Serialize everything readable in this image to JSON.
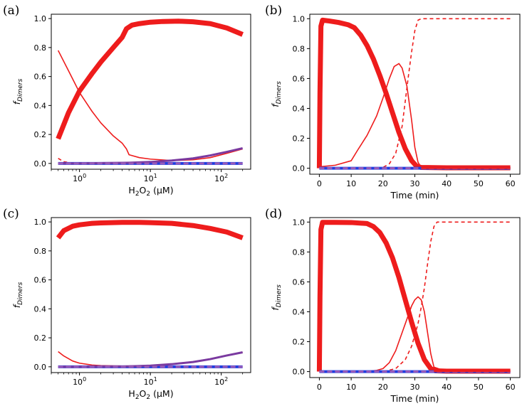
{
  "colors": {
    "red": "#ee1c1c",
    "blue": "#1f3fe0",
    "purple": "#7a3aa0",
    "axis": "#000000"
  },
  "chart_data": [
    {
      "panel": "(a)",
      "type": "line",
      "xscale": "log",
      "xlim": [
        0.4,
        260
      ],
      "ylim": [
        -0.04,
        1.03
      ],
      "xticks": [
        1,
        10,
        100
      ],
      "xtick_labels": [
        "10",
        "10",
        "10"
      ],
      "xtick_exponents": [
        "0",
        "1",
        "2"
      ],
      "yticks": [
        0.0,
        0.2,
        0.4,
        0.6,
        0.8,
        1.0
      ],
      "ytick_labels": [
        "0.0",
        "0.2",
        "0.4",
        "0.6",
        "0.8",
        "1.0"
      ],
      "xlabel": {
        "base": "H",
        "sub1": "2",
        "mid": "O",
        "sub2": "2",
        "rest": " (μM)"
      },
      "ylabel": {
        "base": "f",
        "sub": "Dimers"
      },
      "series": [
        {
          "name": "thick-red",
          "color": "#ee1c1c",
          "width": 7,
          "dash": "",
          "x": [
            0.5,
            0.7,
            1.0,
            1.5,
            2.0,
            3.0,
            4.0,
            4.6,
            5.5,
            7,
            10,
            15,
            25,
            40,
            70,
            120,
            200
          ],
          "y": [
            0.17,
            0.35,
            0.5,
            0.62,
            0.7,
            0.8,
            0.87,
            0.93,
            0.955,
            0.965,
            0.975,
            0.98,
            0.982,
            0.978,
            0.965,
            0.935,
            0.89
          ]
        },
        {
          "name": "thin-red",
          "color": "#ee1c1c",
          "width": 1.6,
          "dash": "",
          "x": [
            0.5,
            0.7,
            1.0,
            1.5,
            2.0,
            3.0,
            4.0,
            4.6,
            5.0,
            7,
            10,
            20,
            40,
            70,
            120,
            200
          ],
          "y": [
            0.78,
            0.64,
            0.49,
            0.36,
            0.28,
            0.19,
            0.14,
            0.1,
            0.06,
            0.04,
            0.03,
            0.02,
            0.025,
            0.04,
            0.07,
            0.1
          ]
        },
        {
          "name": "dashed-red",
          "color": "#ee1c1c",
          "width": 1.6,
          "dash": "5,4",
          "x": [
            0.5,
            0.6,
            0.8,
            1.0,
            10,
            100,
            200
          ],
          "y": [
            0.035,
            0.012,
            0.003,
            0.0,
            0.0,
            0.0,
            0.0
          ]
        },
        {
          "name": "thick-blue",
          "color": "#1f3fe0",
          "width": 4,
          "dash": "",
          "x": [
            0.5,
            1,
            3,
            10,
            30,
            80,
            200
          ],
          "y": [
            0.0,
            0.0,
            0.0,
            0.0,
            0.0,
            0.0,
            0.0
          ]
        },
        {
          "name": "purple",
          "color": "#7a3aa0",
          "width": 3,
          "dash": "",
          "x": [
            0.5,
            1,
            5,
            10,
            20,
            40,
            70,
            120,
            200
          ],
          "y": [
            0.0,
            0.0,
            0.005,
            0.01,
            0.02,
            0.035,
            0.055,
            0.08,
            0.105
          ]
        },
        {
          "name": "dashed-purple",
          "color": "#9a5ab8",
          "width": 3,
          "dash": "7,4",
          "x": [
            0.5,
            200
          ],
          "y": [
            0.0,
            0.0
          ]
        }
      ]
    },
    {
      "panel": "(b)",
      "type": "line",
      "xscale": "linear",
      "xlim": [
        -3,
        63
      ],
      "ylim": [
        -0.04,
        1.03
      ],
      "xticks": [
        0,
        10,
        20,
        30,
        40,
        50,
        60
      ],
      "xtick_labels": [
        "0",
        "10",
        "20",
        "30",
        "40",
        "50",
        "60"
      ],
      "yticks": [
        0.0,
        0.2,
        0.4,
        0.6,
        0.8,
        1.0
      ],
      "ytick_labels": [
        "0.0",
        "0.2",
        "0.4",
        "0.6",
        "0.8",
        "1.0"
      ],
      "xlabel": {
        "text": "Time (min)"
      },
      "ylabel": {
        "base": "f",
        "sub": "Dimers"
      },
      "series": [
        {
          "name": "thick-red",
          "color": "#ee1c1c",
          "width": 7,
          "dash": "",
          "x": [
            0,
            0.2,
            0.5,
            1,
            3,
            6,
            9,
            11,
            13,
            15,
            17,
            19,
            21,
            23,
            25,
            27,
            29,
            30.5,
            32,
            40,
            60
          ],
          "y": [
            0.0,
            0.5,
            0.95,
            0.99,
            0.985,
            0.975,
            0.96,
            0.94,
            0.89,
            0.82,
            0.73,
            0.62,
            0.5,
            0.37,
            0.24,
            0.13,
            0.05,
            0.015,
            0.005,
            0.003,
            0.003
          ]
        },
        {
          "name": "thin-red",
          "color": "#ee1c1c",
          "width": 1.6,
          "dash": "",
          "x": [
            0,
            5,
            10,
            12,
            15,
            18,
            20,
            22,
            23.5,
            25,
            26,
            27.5,
            29,
            30,
            31,
            32,
            40,
            60
          ],
          "y": [
            0.01,
            0.02,
            0.05,
            0.12,
            0.22,
            0.35,
            0.47,
            0.6,
            0.68,
            0.7,
            0.67,
            0.55,
            0.32,
            0.14,
            0.04,
            0.005,
            0.0,
            0.0
          ]
        },
        {
          "name": "dashed-red",
          "color": "#ee1c1c",
          "width": 1.6,
          "dash": "5,4",
          "x": [
            0,
            15,
            20,
            22,
            24,
            26,
            27,
            28,
            29,
            30,
            31,
            32,
            60
          ],
          "y": [
            0.0,
            0.0,
            0.005,
            0.03,
            0.1,
            0.28,
            0.45,
            0.62,
            0.78,
            0.92,
            0.99,
            1.0,
            1.0
          ]
        },
        {
          "name": "thick-blue",
          "color": "#1f3fe0",
          "width": 4,
          "dash": "",
          "x": [
            0,
            60
          ],
          "y": [
            0.0,
            0.0
          ]
        },
        {
          "name": "dashed-purple",
          "color": "#9a5ab8",
          "width": 3,
          "dash": "7,4",
          "x": [
            0,
            60
          ],
          "y": [
            0.0,
            0.0
          ]
        },
        {
          "name": "thick-red-base",
          "color": "#ee1c1c",
          "width": 3,
          "dash": "",
          "x": [
            32,
            60
          ],
          "y": [
            0.002,
            0.002
          ]
        }
      ]
    },
    {
      "panel": "(c)",
      "type": "line",
      "xscale": "log",
      "xlim": [
        0.4,
        260
      ],
      "ylim": [
        -0.04,
        1.03
      ],
      "xticks": [
        1,
        10,
        100
      ],
      "xtick_labels": [
        "10",
        "10",
        "10"
      ],
      "xtick_exponents": [
        "0",
        "1",
        "2"
      ],
      "yticks": [
        0.0,
        0.2,
        0.4,
        0.6,
        0.8,
        1.0
      ],
      "ytick_labels": [
        "0.0",
        "0.2",
        "0.4",
        "0.6",
        "0.8",
        "1.0"
      ],
      "xlabel": {
        "base": "H",
        "sub1": "2",
        "mid": "O",
        "sub2": "2",
        "rest": " (μM)"
      },
      "ylabel": {
        "base": "f",
        "sub": "Dimers"
      },
      "series": [
        {
          "name": "thick-red",
          "color": "#ee1c1c",
          "width": 7,
          "dash": "",
          "x": [
            0.5,
            0.6,
            0.8,
            1.0,
            1.5,
            2,
            4,
            7,
            10,
            20,
            40,
            70,
            120,
            200
          ],
          "y": [
            0.89,
            0.94,
            0.97,
            0.98,
            0.99,
            0.993,
            0.997,
            0.997,
            0.995,
            0.99,
            0.975,
            0.955,
            0.93,
            0.89
          ]
        },
        {
          "name": "thin-red",
          "color": "#ee1c1c",
          "width": 1.6,
          "dash": "",
          "x": [
            0.5,
            0.6,
            0.8,
            1.0,
            1.5,
            2,
            4,
            10,
            20,
            40,
            70,
            120,
            200
          ],
          "y": [
            0.105,
            0.075,
            0.04,
            0.025,
            0.012,
            0.008,
            0.005,
            0.008,
            0.02,
            0.035,
            0.055,
            0.08,
            0.1
          ]
        },
        {
          "name": "thick-blue",
          "color": "#1f3fe0",
          "width": 4,
          "dash": "",
          "x": [
            0.5,
            1,
            10,
            100,
            200
          ],
          "y": [
            0.0,
            0.0,
            0.0,
            0.0,
            0.0
          ]
        },
        {
          "name": "purple",
          "color": "#7a3aa0",
          "width": 3,
          "dash": "",
          "x": [
            0.5,
            1,
            5,
            10,
            20,
            40,
            70,
            120,
            200
          ],
          "y": [
            0.0,
            0.0,
            0.003,
            0.008,
            0.018,
            0.033,
            0.053,
            0.078,
            0.1
          ]
        },
        {
          "name": "dashed-purple",
          "color": "#9a5ab8",
          "width": 3,
          "dash": "7,4",
          "x": [
            0.5,
            200
          ],
          "y": [
            0.0,
            0.0
          ]
        }
      ]
    },
    {
      "panel": "(d)",
      "type": "line",
      "xscale": "linear",
      "xlim": [
        -3,
        63
      ],
      "ylim": [
        -0.04,
        1.03
      ],
      "xticks": [
        0,
        10,
        20,
        30,
        40,
        50,
        60
      ],
      "xtick_labels": [
        "0",
        "10",
        "20",
        "30",
        "40",
        "50",
        "60"
      ],
      "yticks": [
        0.0,
        0.2,
        0.4,
        0.6,
        0.8,
        1.0
      ],
      "ytick_labels": [
        "0.0",
        "0.2",
        "0.4",
        "0.6",
        "0.8",
        "1.0"
      ],
      "xlabel": {
        "text": "Time (min)"
      },
      "ylabel": {
        "base": "f",
        "sub": "Dimers"
      },
      "series": [
        {
          "name": "thick-red",
          "color": "#ee1c1c",
          "width": 7,
          "dash": "",
          "x": [
            0,
            0.2,
            0.5,
            1,
            5,
            10,
            15,
            17,
            19,
            21,
            23,
            25,
            27,
            29,
            31,
            33,
            35,
            36.5,
            40,
            60
          ],
          "y": [
            0.0,
            0.5,
            0.95,
            0.998,
            0.998,
            0.997,
            0.99,
            0.97,
            0.93,
            0.86,
            0.76,
            0.63,
            0.48,
            0.33,
            0.19,
            0.08,
            0.02,
            0.005,
            0.003,
            0.003
          ]
        },
        {
          "name": "thin-red",
          "color": "#ee1c1c",
          "width": 1.6,
          "dash": "",
          "x": [
            0,
            15,
            18,
            20,
            22,
            24,
            26,
            28,
            29,
            30,
            31,
            32,
            33,
            34,
            35,
            36,
            40,
            60
          ],
          "y": [
            0.0,
            0.002,
            0.008,
            0.02,
            0.06,
            0.14,
            0.26,
            0.38,
            0.44,
            0.48,
            0.5,
            0.48,
            0.4,
            0.26,
            0.12,
            0.03,
            0.0,
            0.0
          ]
        },
        {
          "name": "dashed-red",
          "color": "#ee1c1c",
          "width": 1.6,
          "dash": "5,4",
          "x": [
            0,
            20,
            24,
            27,
            29,
            31,
            32,
            33,
            34,
            35,
            36,
            37,
            60
          ],
          "y": [
            0.0,
            0.0,
            0.02,
            0.08,
            0.17,
            0.32,
            0.43,
            0.56,
            0.72,
            0.87,
            0.97,
            1.0,
            1.0
          ]
        },
        {
          "name": "thick-blue",
          "color": "#1f3fe0",
          "width": 4,
          "dash": "",
          "x": [
            0,
            60
          ],
          "y": [
            0.0,
            0.0
          ]
        },
        {
          "name": "dashed-purple",
          "color": "#9a5ab8",
          "width": 3,
          "dash": "7,4",
          "x": [
            0,
            60
          ],
          "y": [
            0.0,
            0.0
          ]
        },
        {
          "name": "thick-red-base",
          "color": "#ee1c1c",
          "width": 3,
          "dash": "",
          "x": [
            36,
            60
          ],
          "y": [
            0.004,
            0.004
          ]
        }
      ]
    }
  ]
}
